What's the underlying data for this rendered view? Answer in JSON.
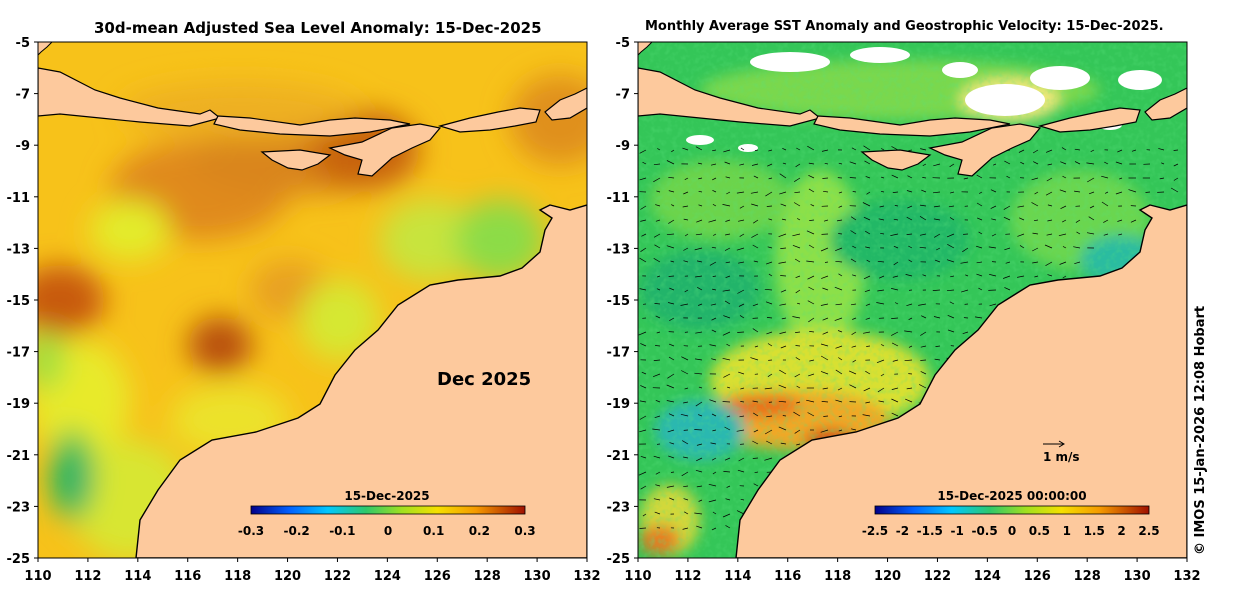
{
  "left_panel": {
    "title": "30d-mean Adjusted Sea Level Anomaly: 15-Dec-2025",
    "month_label": "Dec 2025",
    "colorbar": {
      "date": "15-Dec-2025",
      "ticks": [
        "-0.3",
        "-0.2",
        "-0.1",
        "0",
        "0.1",
        "0.2",
        "0.3"
      ]
    }
  },
  "right_panel": {
    "title": "Monthly Average SST Anomaly  and Geostrophic Velocity: 15-Dec-2025.",
    "vector_scale_label": "1 m/s",
    "colorbar": {
      "date": "15-Dec-2025 00:00:00",
      "ticks": [
        "-2.5",
        "-2",
        "-1.5",
        "-1",
        "-0.5",
        "0",
        "0.5",
        "1",
        "1.5",
        "2",
        "2.5"
      ]
    }
  },
  "axes": {
    "lat_ticks": [
      "-5",
      "-7",
      "-9",
      "-11",
      "-13",
      "-15",
      "-17",
      "-19",
      "-21",
      "-23",
      "-25"
    ],
    "lon_ticks": [
      "110",
      "112",
      "114",
      "116",
      "118",
      "120",
      "122",
      "124",
      "126",
      "128",
      "130",
      "132"
    ]
  },
  "credit": "© IMOS 15-Jan-2026 12:08 Hobart",
  "colors": {
    "land": "#fdc99d",
    "sla_high": "#c8580a",
    "sla_mid": "#f5a70a",
    "sla_low": "#5cd04a",
    "sst_green": "#2fc35a",
    "sst_warm": "#f07a1e",
    "sst_cool": "#2ab7a8"
  }
}
